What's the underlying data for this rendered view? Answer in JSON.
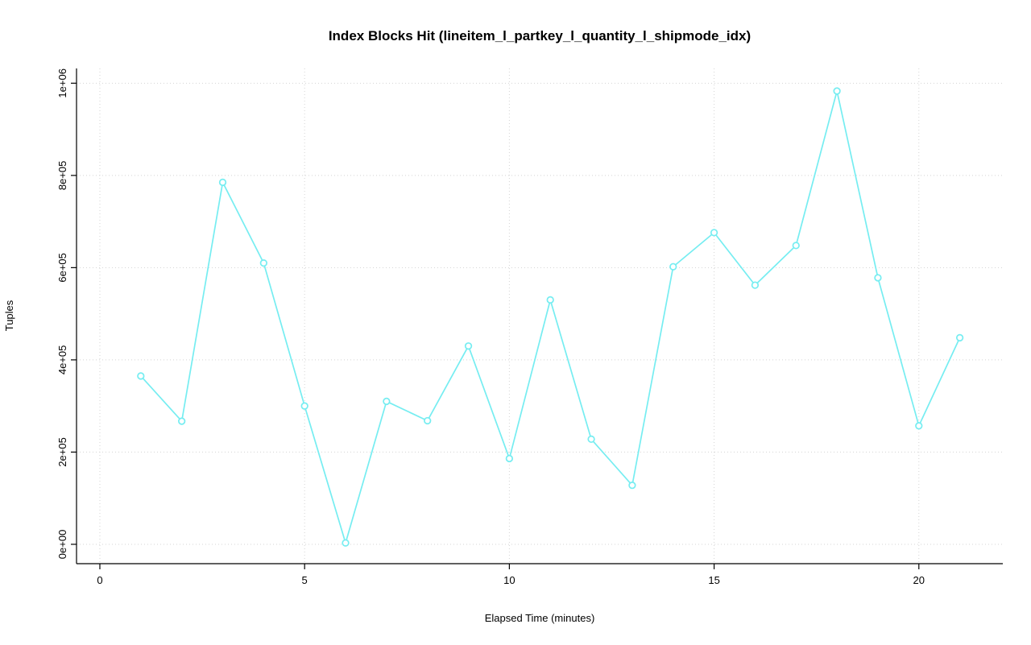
{
  "chart_data": {
    "type": "line",
    "title": "Index Blocks Hit (lineitem_l_partkey_l_quantity_l_shipmode_idx)",
    "xlabel": "Elapsed Time (minutes)",
    "ylabel": "Tuples",
    "x": [
      1,
      2,
      3,
      4,
      5,
      6,
      7,
      8,
      9,
      10,
      11,
      12,
      13,
      14,
      15,
      16,
      17,
      18,
      19,
      20,
      21
    ],
    "y": [
      365000,
      267000,
      785000,
      610000,
      300000,
      3000,
      310000,
      268000,
      430000,
      186000,
      530000,
      228000,
      128000,
      602000,
      676000,
      562000,
      648000,
      983000,
      578000,
      257000,
      448000
    ],
    "x_ticks": [
      0,
      5,
      10,
      15,
      20
    ],
    "x_tick_labels": [
      "0",
      "5",
      "10",
      "15",
      "20"
    ],
    "y_ticks": [
      0,
      200000,
      400000,
      600000,
      800000,
      1000000
    ],
    "y_tick_labels": [
      "0e+00",
      "2e+05",
      "4e+05",
      "6e+05",
      "8e+05",
      "1e+06"
    ],
    "xlim": [
      -0.57,
      22.05
    ],
    "ylim": [
      -42000,
      1032000
    ],
    "grid": true,
    "legend": "none",
    "line_color": "#76edf1",
    "point_style": "open-circle",
    "grid_color": "#d4d4d4",
    "axis_color": "#000000"
  }
}
